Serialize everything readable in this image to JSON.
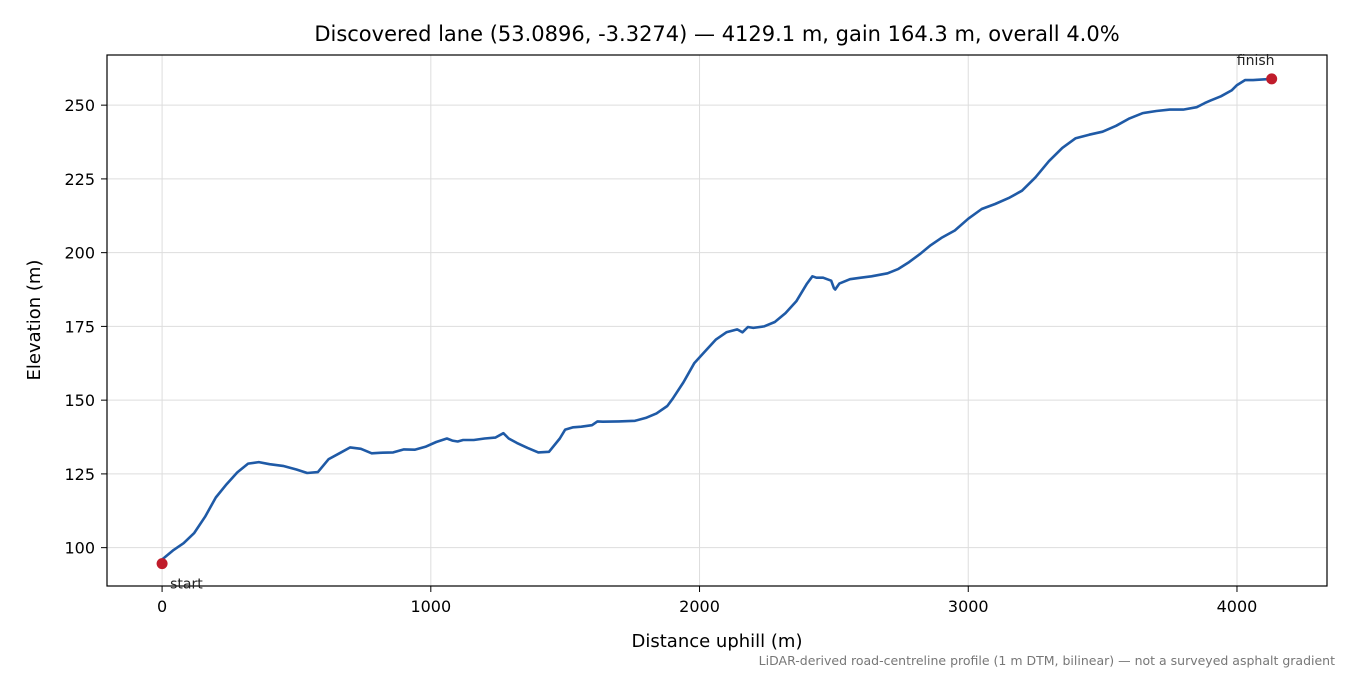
{
  "chart_data": {
    "type": "line",
    "title": "Discovered lane (53.0896, -3.3274) — 4129.1 m, gain 164.3 m, overall 4.0%",
    "xlabel": "Distance uphill (m)",
    "ylabel": "Elevation (m)",
    "note": "LiDAR-derived road-centreline profile (1 m DTM, bilinear) — not a surveyed asphalt gradient",
    "xlim": [
      -205,
      4335
    ],
    "ylim": [
      87,
      267
    ],
    "xticks": [
      0,
      1000,
      2000,
      3000,
      4000
    ],
    "yticks": [
      100,
      125,
      150,
      175,
      200,
      225,
      250
    ],
    "grid": true,
    "line_color": "#1f5aa6",
    "marker_color": "#c01c2b",
    "markers": [
      {
        "label": "start",
        "x": 0,
        "y": 94.6
      },
      {
        "label": "finish",
        "x": 4129.1,
        "y": 258.9
      }
    ],
    "series": [
      {
        "x": [
          0,
          40,
          80,
          120,
          160,
          200,
          240,
          280,
          320,
          360,
          400,
          450,
          500,
          540,
          580,
          620,
          660,
          700,
          740,
          780,
          820,
          860,
          900,
          940,
          980,
          1020,
          1060,
          1080,
          1100,
          1120,
          1160,
          1200,
          1240,
          1270,
          1290,
          1320,
          1360,
          1400,
          1440,
          1480,
          1500,
          1530,
          1560,
          1600,
          1620,
          1640,
          1700,
          1760,
          1800,
          1840,
          1880,
          1900,
          1940,
          1980,
          2020,
          2060,
          2100,
          2140,
          2160,
          2180,
          2200,
          2240,
          2280,
          2320,
          2360,
          2400,
          2420,
          2435,
          2445,
          2460,
          2490,
          2500,
          2505,
          2520,
          2560,
          2600,
          2640,
          2700,
          2740,
          2780,
          2820,
          2860,
          2900,
          2950,
          3000,
          3050,
          3100,
          3150,
          3200,
          3250,
          3300,
          3350,
          3400,
          3450,
          3500,
          3550,
          3600,
          3650,
          3700,
          3750,
          3800,
          3850,
          3880,
          3900,
          3940,
          3980,
          4000,
          4030,
          4060,
          4129.1
        ],
        "y": [
          96.0,
          99.0,
          101.5,
          105.0,
          110.5,
          117.0,
          121.5,
          125.5,
          128.5,
          129.0,
          128.3,
          127.7,
          126.5,
          125.3,
          125.6,
          130.0,
          132.0,
          134.0,
          133.5,
          132.0,
          132.2,
          132.3,
          133.3,
          133.2,
          134.2,
          135.8,
          137.0,
          136.3,
          136.0,
          136.5,
          136.5,
          137.0,
          137.3,
          138.8,
          137.0,
          135.5,
          133.8,
          132.3,
          132.5,
          137.0,
          140.0,
          140.8,
          141.0,
          141.5,
          142.8,
          142.7,
          142.8,
          143.0,
          144.0,
          145.5,
          148.0,
          150.5,
          156.0,
          162.5,
          166.5,
          170.5,
          173.0,
          174.0,
          173.0,
          174.8,
          174.5,
          175.0,
          176.5,
          179.5,
          183.5,
          189.5,
          192.0,
          191.5,
          191.5,
          191.5,
          190.5,
          188.0,
          187.5,
          189.5,
          191.0,
          191.5,
          192.0,
          193.0,
          194.5,
          196.8,
          199.5,
          202.5,
          205.0,
          207.5,
          211.5,
          214.8,
          216.5,
          218.5,
          221.0,
          225.5,
          231.0,
          235.5,
          238.8,
          240.0,
          241.0,
          243.0,
          245.5,
          247.3,
          248.0,
          248.5,
          248.5,
          249.3,
          250.7,
          251.5,
          253.0,
          255.0,
          256.8,
          258.5,
          258.5,
          258.9
        ]
      }
    ]
  }
}
